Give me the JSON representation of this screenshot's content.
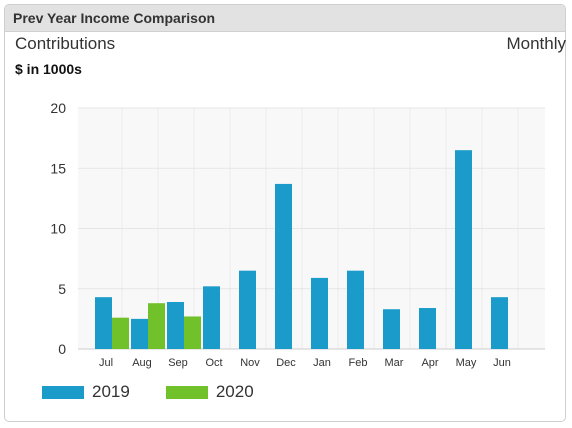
{
  "widget": {
    "title": "Prev Year Income Comparison",
    "subtitle_left": "Contributions",
    "subtitle_right": "Monthly",
    "unit_label": "$ in 1000s"
  },
  "chart_data": {
    "type": "bar",
    "title": "Prev Year Income Comparison",
    "ylabel": "$ in 1000s",
    "xlabel": "",
    "categories": [
      "Jul",
      "Aug",
      "Sep",
      "Oct",
      "Nov",
      "Dec",
      "Jan",
      "Feb",
      "Mar",
      "Apr",
      "May",
      "Jun"
    ],
    "series": [
      {
        "name": "2019",
        "color": "#1a9bc9",
        "values": [
          4.3,
          2.5,
          3.9,
          5.2,
          6.5,
          13.7,
          5.9,
          6.5,
          3.3,
          3.4,
          16.5,
          4.3
        ]
      },
      {
        "name": "2020",
        "color": "#70c12a",
        "values": [
          2.6,
          3.8,
          2.7,
          null,
          null,
          null,
          null,
          null,
          null,
          null,
          null,
          null
        ]
      }
    ],
    "ylim": [
      0,
      20
    ],
    "yticks": [
      "0",
      "5",
      "10",
      "15",
      "20"
    ],
    "grid": true,
    "legend": "bottom-left"
  }
}
